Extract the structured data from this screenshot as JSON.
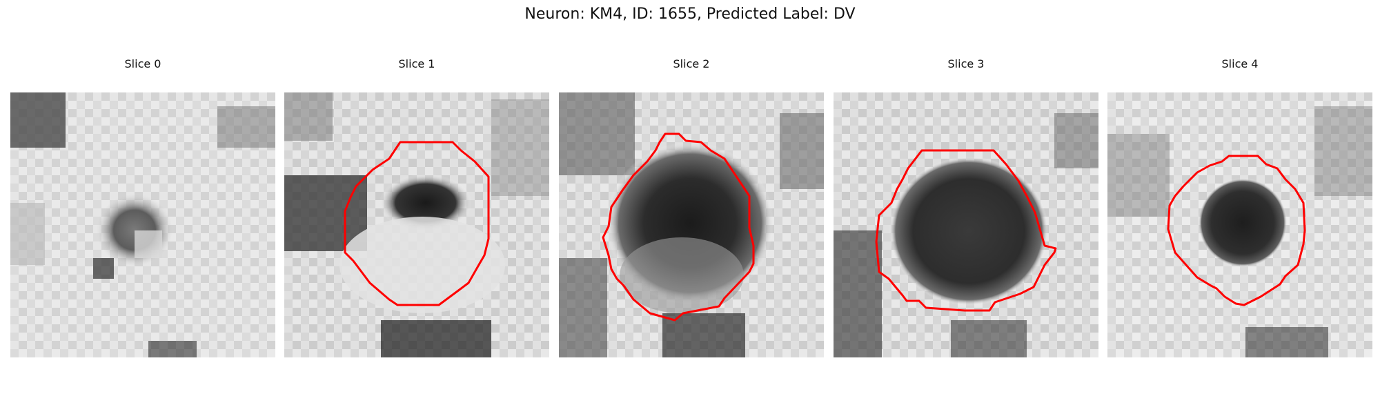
{
  "figure": {
    "title": "Neuron: KM4, ID: 1655, Predicted Label: DV"
  },
  "colors": {
    "contour": "#ff0000",
    "cmap_light": "#e6e6e6",
    "cmap_dark": "#111111"
  },
  "slices": [
    {
      "title": "Slice 0",
      "has_contour": false
    },
    {
      "title": "Slice 1",
      "has_contour": true
    },
    {
      "title": "Slice 2",
      "has_contour": true
    },
    {
      "title": "Slice 3",
      "has_contour": true
    },
    {
      "title": "Slice 4",
      "has_contour": true
    }
  ]
}
